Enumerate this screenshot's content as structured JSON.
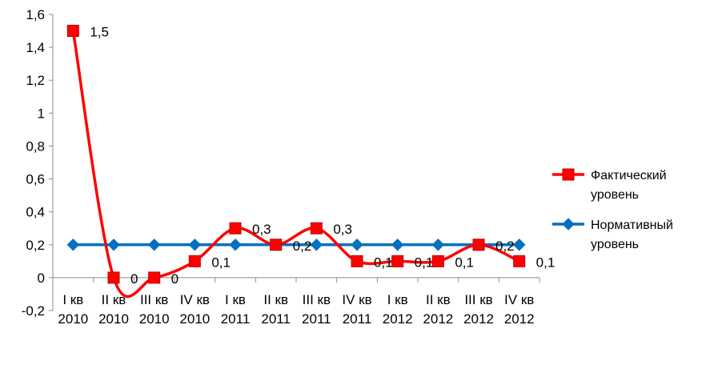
{
  "chart_data": {
    "type": "line",
    "categories": [
      [
        "I кв",
        "2010"
      ],
      [
        "II кв",
        "2010"
      ],
      [
        "III кв",
        "2010"
      ],
      [
        "IV кв",
        "2010"
      ],
      [
        "I кв",
        "2011"
      ],
      [
        "II кв",
        "2011"
      ],
      [
        "III кв",
        "2011"
      ],
      [
        "IV кв",
        "2011"
      ],
      [
        "I кв",
        "2012"
      ],
      [
        "II кв",
        "2012"
      ],
      [
        "III кв",
        "2012"
      ],
      [
        "IV кв",
        "2012"
      ]
    ],
    "series": [
      {
        "name_lines": [
          "Фактический",
          "уровень"
        ],
        "values": [
          1.5,
          0,
          0,
          0.1,
          0.3,
          0.2,
          0.3,
          0.1,
          0.1,
          0.1,
          0.2,
          0.1
        ],
        "labels": [
          "1,5",
          "0",
          "0",
          "0,1",
          "0,3",
          "0,2",
          "0,3",
          "0,1",
          "0,1",
          "0,1",
          "0,2",
          "0,1"
        ],
        "color": "#ff0000",
        "marker": "square",
        "smooth": true
      },
      {
        "name_lines": [
          "Нормативный",
          "уровень"
        ],
        "values": [
          0.2,
          0.2,
          0.2,
          0.2,
          0.2,
          0.2,
          0.2,
          0.2,
          0.2,
          0.2,
          0.2,
          0.2
        ],
        "color": "#0070c0",
        "marker": "diamond",
        "smooth": false
      }
    ],
    "yticks": [
      -0.2,
      0,
      0.2,
      0.4,
      0.6,
      0.8,
      1,
      1.2,
      1.4,
      1.6
    ],
    "ytick_labels": [
      "-0,2",
      "0",
      "0,2",
      "0,4",
      "0,6",
      "0,8",
      "1",
      "1,2",
      "1,4",
      "1,6"
    ],
    "ylim": [
      -0.2,
      1.6
    ],
    "grid": false,
    "legend": "right"
  }
}
